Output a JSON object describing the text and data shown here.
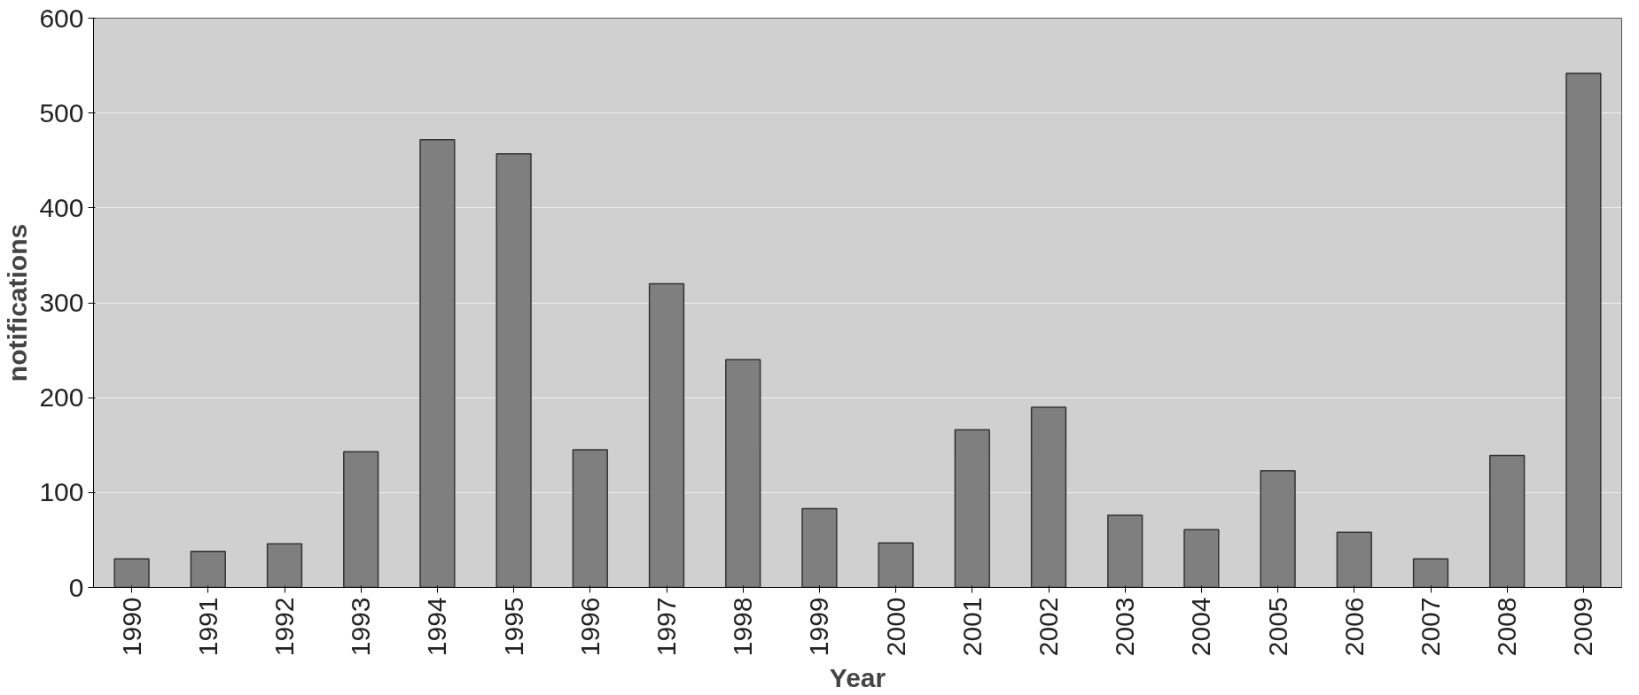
{
  "chart_data": {
    "type": "bar",
    "xlabel": "Year",
    "ylabel": "notifications",
    "categories": [
      "1990",
      "1991",
      "1992",
      "1993",
      "1994",
      "1995",
      "1996",
      "1997",
      "1998",
      "1999",
      "2000",
      "2001",
      "2002",
      "2003",
      "2004",
      "2005",
      "2006",
      "2007",
      "2008",
      "2009"
    ],
    "values": [
      30,
      38,
      46,
      143,
      472,
      457,
      145,
      320,
      240,
      83,
      47,
      166,
      190,
      76,
      61,
      123,
      58,
      30,
      139,
      542
    ],
    "color": "#7f7f7f",
    "ylim": [
      0,
      600
    ],
    "yticks": [
      0,
      100,
      200,
      300,
      400,
      500,
      600
    ],
    "grid": "y"
  }
}
